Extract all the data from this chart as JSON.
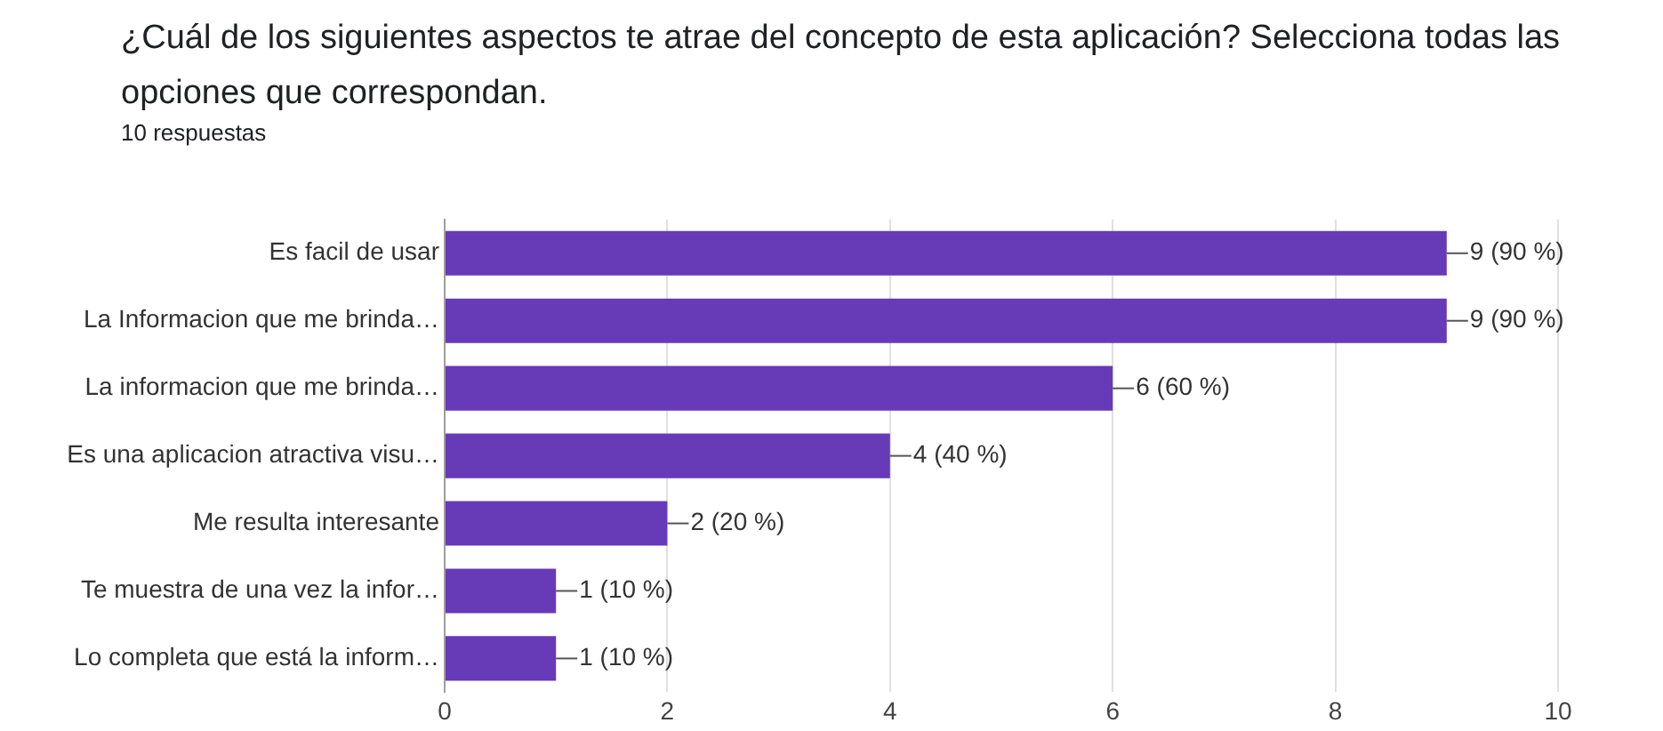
{
  "chart_data": {
    "type": "bar",
    "orientation": "horizontal",
    "title": "¿Cuál de los siguientes aspectos te atrae del concepto de esta aplicación? Selecciona todas las opciones que correspondan.",
    "subtitle": "10 respuestas",
    "categories": [
      "Es facil de usar",
      "La Informacion que me brinda…",
      "La informacion que me brinda…",
      "Es una aplicacion atractiva visu…",
      "Me resulta interesante",
      "Te muestra de una vez la infor…",
      "Lo completa que está la inform…"
    ],
    "values": [
      9,
      9,
      6,
      4,
      2,
      1,
      1
    ],
    "value_labels": [
      "9 (90 %)",
      "9 (90 %)",
      "6 (60 %)",
      "4 (40 %)",
      "2 (20 %)",
      "1 (10 %)",
      "1 (10 %)"
    ],
    "color": "#673ab7",
    "xlim": [
      0,
      10
    ],
    "xticks": [
      0,
      2,
      4,
      6,
      8,
      10
    ],
    "grid": "x"
  }
}
